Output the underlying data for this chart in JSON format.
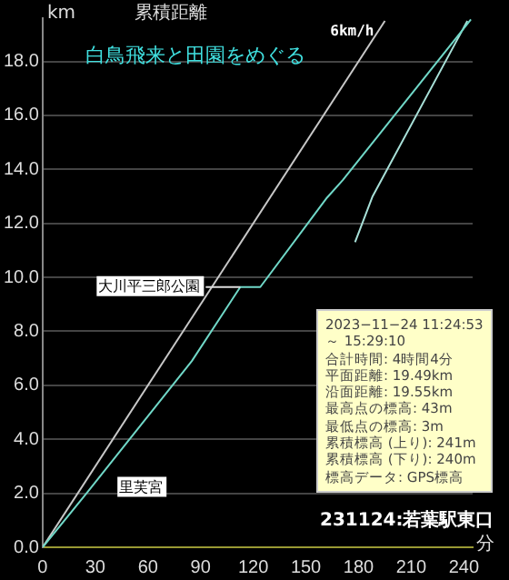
{
  "chart_data": {
    "type": "line",
    "title": "累積距離",
    "subtitle": "白鳥飛来と田園をめぐる",
    "xlabel": "分",
    "ylabel": "km",
    "x": [
      0,
      25,
      85,
      112.6,
      124,
      162,
      171,
      244
    ],
    "series": [
      {
        "color": "#70d8c8",
        "values": [
          0,
          2,
          6.9,
          9.64,
          9.64,
          12.95,
          13.6,
          19.55
        ]
      },
      {
        "name": "6km/h",
        "color": "#c8c8c8",
        "x": [
          0,
          195
        ],
        "values": [
          0,
          19.5
        ]
      },
      {
        "color": "#a8e0d8",
        "x": [
          178,
          188,
          242
        ],
        "values": [
          11.3,
          13.0,
          19.5
        ]
      }
    ],
    "xlim": [
      0,
      245
    ],
    "xticks": [
      0,
      30,
      60,
      90,
      120,
      150,
      180,
      210,
      240
    ],
    "ylim": [
      0,
      19.6
    ],
    "yticks": [
      {
        "value": 0,
        "label": "0.0"
      },
      {
        "value": 2,
        "label": "2.0"
      },
      {
        "value": 4,
        "label": "4.0"
      },
      {
        "value": 6,
        "label": "6.0"
      },
      {
        "value": 8,
        "label": "8.0"
      },
      {
        "value": 10,
        "label": "10.0"
      },
      {
        "value": 12,
        "label": "12.0"
      },
      {
        "value": 14,
        "label": "14.0"
      },
      {
        "value": 16,
        "label": "16.0"
      },
      {
        "value": 18,
        "label": "18.0"
      }
    ],
    "grid": "y",
    "legend": false,
    "marker": "none",
    "line_style": "solid",
    "annotations": [
      {
        "text": "大川平三郎公園",
        "x": 112.6,
        "y": 9.64
      },
      {
        "text": "里芙宮",
        "x": 25,
        "y": 2
      },
      "2023−11−24 11:24:53",
      "～ 15:29:10",
      "合計時間: 4時間4分",
      "平面距離: 19.49km",
      "沿面距離: 19.55km",
      "最高点の標高: 43m",
      "最低点の標高: 3m",
      "累積標高 (上り): 241m",
      "累積標高 (下り): 240m",
      "標高データ: GPS標高",
      "231124:若葉駅東口"
    ]
  }
}
